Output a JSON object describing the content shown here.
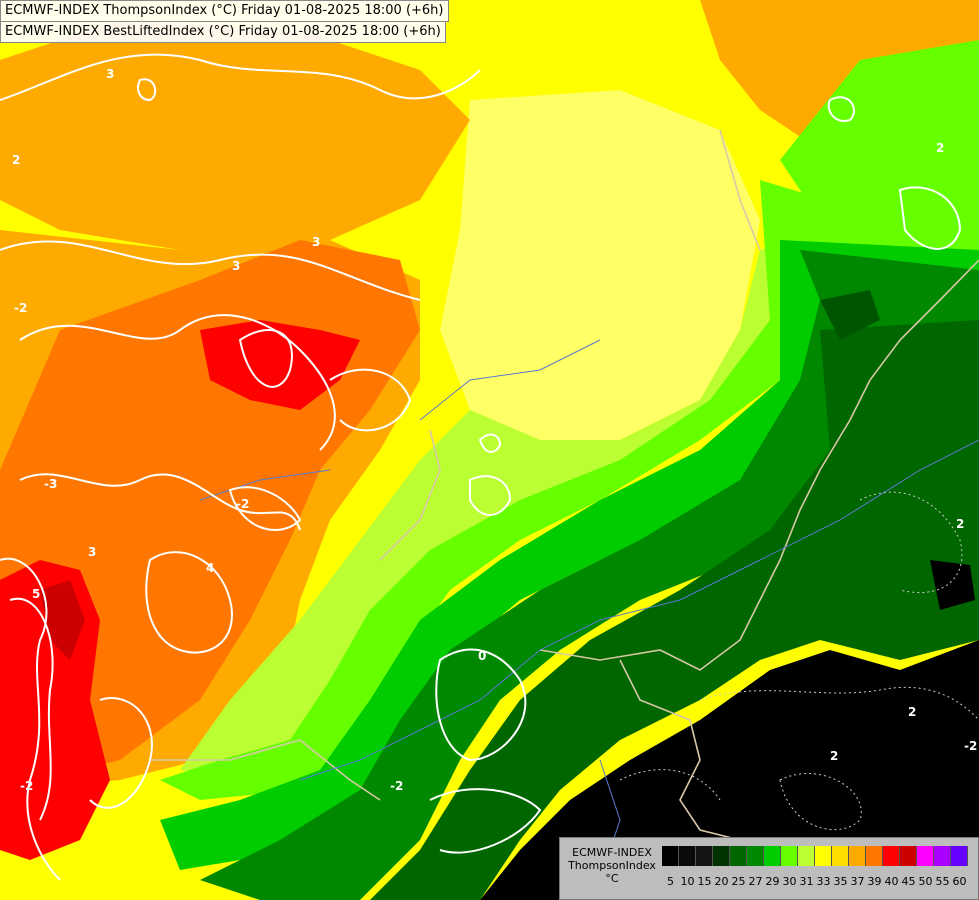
{
  "titles": {
    "line1": "ECMWF-INDEX ThompsonIndex (°C) Friday 01-08-2025 18:00 (+6h)",
    "line2": "ECMWF-INDEX BestLiftedIndex (°C) Friday 01-08-2025 18:00 (+6h)"
  },
  "legend": {
    "line1": "ECMWF-INDEX",
    "line2": "ThompsonIndex",
    "unit": "°C",
    "ticks": [
      "5",
      "10",
      "15",
      "20",
      "25",
      "27",
      "29",
      "30",
      "31",
      "33",
      "35",
      "37",
      "39",
      "40",
      "45",
      "50",
      "55",
      "60"
    ],
    "colors": [
      "#000000",
      "#0a0a0a",
      "#141414",
      "#003300",
      "#006600",
      "#008800",
      "#00cc00",
      "#66ff00",
      "#bbff33",
      "#ffff00",
      "#ffdd00",
      "#ffaa00",
      "#ff7700",
      "#ff0000",
      "#cc0000",
      "#ff00ff",
      "#aa00ff",
      "#6600ff"
    ]
  },
  "contour_labels": [
    "2",
    "3",
    "3",
    "-2",
    "-3",
    "3",
    "5",
    "4",
    "3",
    "2",
    "-2",
    "0",
    "2",
    "-2",
    "2",
    "2",
    "-2",
    "-2"
  ],
  "map_colors": {
    "black": "#000000",
    "dark_green": "#006600",
    "mid_green": "#008800",
    "green": "#00cc00",
    "lime": "#66ff00",
    "yellow_green": "#bbff33",
    "light_yellow": "#ffff66",
    "yellow": "#ffff00",
    "orange": "#ffaa00",
    "dark_orange": "#ff7700",
    "red": "#ff0000",
    "dark_red": "#cc0000",
    "contour": "#ffffff",
    "border": "#d8c8a8",
    "river": "#5a7bd0"
  }
}
